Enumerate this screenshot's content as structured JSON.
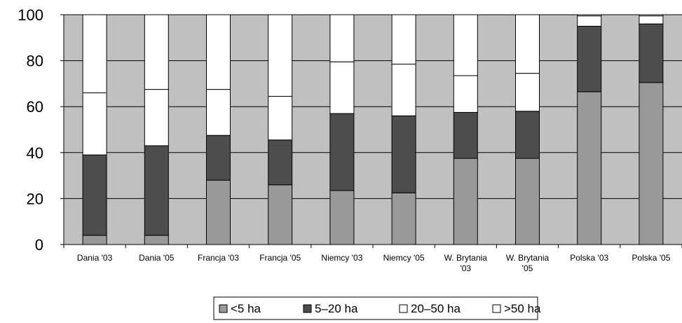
{
  "chart_data": {
    "type": "bar",
    "stacked": true,
    "title": "",
    "xlabel": "",
    "ylabel": "",
    "ylim": [
      0,
      100
    ],
    "yticks": [
      0,
      20,
      40,
      60,
      80,
      100
    ],
    "grid": true,
    "legend_position": "bottom",
    "plot_background": "#c0c0c0",
    "categories": [
      [
        "Dania '03"
      ],
      [
        "Dania '05"
      ],
      [
        "Francja '03"
      ],
      [
        "Francja '05"
      ],
      [
        "Niemcy '03"
      ],
      [
        "Niemcy '05"
      ],
      [
        "W. Brytania",
        "'03"
      ],
      [
        "W. Brytania",
        "'05"
      ],
      [
        "Polska '03"
      ],
      [
        "Polska '05"
      ]
    ],
    "series": [
      {
        "name": "<5 ha",
        "color": "#999999",
        "values": [
          4,
          4,
          28,
          26,
          23.5,
          22.5,
          37.5,
          37.5,
          66.5,
          70.5
        ]
      },
      {
        "name": "5–20 ha",
        "color": "#4d4d4d",
        "values": [
          35,
          39,
          19.5,
          19.5,
          33.5,
          33.5,
          20,
          20.5,
          28.5,
          25.5
        ]
      },
      {
        "name": "20–50 ha",
        "color": "#ffffff",
        "values": [
          27,
          24.5,
          20,
          19,
          22.5,
          22.5,
          16,
          16.5,
          4.5,
          3.5
        ]
      },
      {
        "name": ">50 ha",
        "color": "#ffffff",
        "values": [
          34,
          32.5,
          32.5,
          35.5,
          20.5,
          21.5,
          26.5,
          25.5,
          0.5,
          0.5
        ]
      }
    ]
  }
}
